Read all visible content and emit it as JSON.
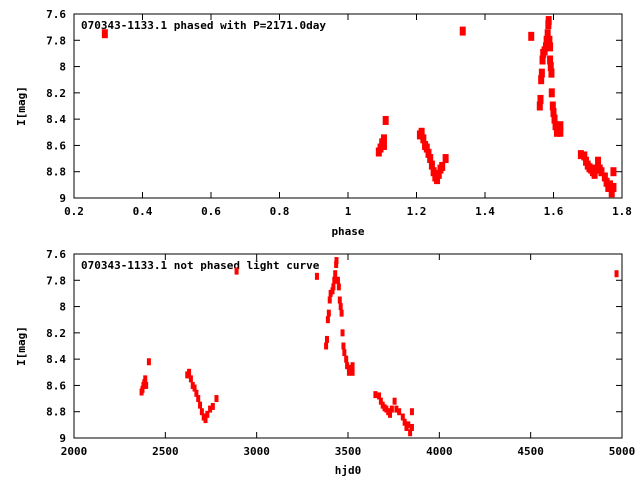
{
  "chart_data": [
    {
      "type": "scatter",
      "title": "070343-1133.1 phased with P=2171.0day",
      "xlabel": "phase",
      "ylabel": "I[mag]",
      "xlim": [
        0.2,
        1.8
      ],
      "ylim": [
        7.6,
        9
      ],
      "y_inverted": true,
      "xticks": [
        "0.2",
        "0.4",
        "0.6",
        "0.8",
        "1",
        "1.2",
        "1.4",
        "1.6",
        "1.8"
      ],
      "yticks": [
        "7.6",
        "7.8",
        "8",
        "8.2",
        "8.4",
        "8.6",
        "8.8",
        "9"
      ],
      "color": "#ff0000",
      "points": [
        [
          0.29,
          7.75
        ],
        [
          1.09,
          8.65
        ],
        [
          1.095,
          8.62
        ],
        [
          1.1,
          8.58
        ],
        [
          1.1,
          8.6
        ],
        [
          1.105,
          8.55
        ],
        [
          1.105,
          8.6
        ],
        [
          1.11,
          8.41
        ],
        [
          1.21,
          8.52
        ],
        [
          1.215,
          8.5
        ],
        [
          1.22,
          8.55
        ],
        [
          1.225,
          8.6
        ],
        [
          1.23,
          8.62
        ],
        [
          1.235,
          8.66
        ],
        [
          1.24,
          8.7
        ],
        [
          1.245,
          8.75
        ],
        [
          1.25,
          8.8
        ],
        [
          1.255,
          8.84
        ],
        [
          1.26,
          8.86
        ],
        [
          1.265,
          8.82
        ],
        [
          1.27,
          8.78
        ],
        [
          1.275,
          8.76
        ],
        [
          1.285,
          8.7
        ],
        [
          1.335,
          7.73
        ],
        [
          1.535,
          7.77
        ],
        [
          1.56,
          8.3
        ],
        [
          1.562,
          8.25
        ],
        [
          1.564,
          8.1
        ],
        [
          1.566,
          8.05
        ],
        [
          1.568,
          7.95
        ],
        [
          1.57,
          7.9
        ],
        [
          1.574,
          7.88
        ],
        [
          1.578,
          7.85
        ],
        [
          1.58,
          7.8
        ],
        [
          1.583,
          7.75
        ],
        [
          1.585,
          7.68
        ],
        [
          1.586,
          7.65
        ],
        [
          1.588,
          7.8
        ],
        [
          1.59,
          7.85
        ],
        [
          1.59,
          7.95
        ],
        [
          1.592,
          8.0
        ],
        [
          1.594,
          8.05
        ],
        [
          1.595,
          8.2
        ],
        [
          1.598,
          8.3
        ],
        [
          1.6,
          8.35
        ],
        [
          1.603,
          8.4
        ],
        [
          1.606,
          8.45
        ],
        [
          1.61,
          8.5
        ],
        [
          1.615,
          8.47
        ],
        [
          1.62,
          8.45
        ],
        [
          1.62,
          8.5
        ],
        [
          1.68,
          8.67
        ],
        [
          1.69,
          8.68
        ],
        [
          1.695,
          8.72
        ],
        [
          1.7,
          8.75
        ],
        [
          1.705,
          8.77
        ],
        [
          1.71,
          8.78
        ],
        [
          1.715,
          8.8
        ],
        [
          1.72,
          8.82
        ],
        [
          1.725,
          8.78
        ],
        [
          1.73,
          8.72
        ],
        [
          1.735,
          8.78
        ],
        [
          1.74,
          8.8
        ],
        [
          1.75,
          8.84
        ],
        [
          1.755,
          8.88
        ],
        [
          1.76,
          8.92
        ],
        [
          1.765,
          8.9
        ],
        [
          1.77,
          8.96
        ],
        [
          1.775,
          8.92
        ],
        [
          1.775,
          8.8
        ]
      ]
    },
    {
      "type": "scatter",
      "title": "070343-1133.1 not phased light curve",
      "xlabel": "hjd0",
      "ylabel": "I[mag]",
      "xlim": [
        2000,
        5000
      ],
      "ylim": [
        7.6,
        9
      ],
      "y_inverted": true,
      "xticks": [
        "2000",
        "2500",
        "3000",
        "3500",
        "4000",
        "4500",
        "5000"
      ],
      "yticks": [
        "7.6",
        "7.8",
        "8",
        "8.2",
        "8.4",
        "8.6",
        "8.8",
        "9"
      ],
      "color": "#ff0000",
      "points": [
        [
          2370,
          8.65
        ],
        [
          2375,
          8.63
        ],
        [
          2380,
          8.6
        ],
        [
          2385,
          8.58
        ],
        [
          2390,
          8.55
        ],
        [
          2395,
          8.6
        ],
        [
          2410,
          8.42
        ],
        [
          2620,
          8.52
        ],
        [
          2630,
          8.5
        ],
        [
          2640,
          8.55
        ],
        [
          2650,
          8.6
        ],
        [
          2660,
          8.62
        ],
        [
          2670,
          8.66
        ],
        [
          2680,
          8.7
        ],
        [
          2690,
          8.75
        ],
        [
          2700,
          8.8
        ],
        [
          2710,
          8.84
        ],
        [
          2720,
          8.86
        ],
        [
          2730,
          8.82
        ],
        [
          2745,
          8.78
        ],
        [
          2760,
          8.76
        ],
        [
          2780,
          8.7
        ],
        [
          2890,
          7.73
        ],
        [
          3330,
          7.77
        ],
        [
          3380,
          8.3
        ],
        [
          3385,
          8.25
        ],
        [
          3390,
          8.1
        ],
        [
          3395,
          8.05
        ],
        [
          3400,
          7.95
        ],
        [
          3405,
          7.9
        ],
        [
          3415,
          7.88
        ],
        [
          3420,
          7.85
        ],
        [
          3425,
          7.8
        ],
        [
          3430,
          7.75
        ],
        [
          3435,
          7.68
        ],
        [
          3437,
          7.65
        ],
        [
          3445,
          7.8
        ],
        [
          3450,
          7.85
        ],
        [
          3455,
          7.95
        ],
        [
          3460,
          8.0
        ],
        [
          3465,
          8.05
        ],
        [
          3470,
          8.2
        ],
        [
          3475,
          8.3
        ],
        [
          3480,
          8.35
        ],
        [
          3490,
          8.4
        ],
        [
          3495,
          8.45
        ],
        [
          3505,
          8.5
        ],
        [
          3515,
          8.47
        ],
        [
          3525,
          8.45
        ],
        [
          3525,
          8.5
        ],
        [
          3650,
          8.67
        ],
        [
          3670,
          8.68
        ],
        [
          3680,
          8.72
        ],
        [
          3690,
          8.75
        ],
        [
          3700,
          8.77
        ],
        [
          3710,
          8.78
        ],
        [
          3720,
          8.8
        ],
        [
          3730,
          8.82
        ],
        [
          3740,
          8.78
        ],
        [
          3755,
          8.72
        ],
        [
          3765,
          8.78
        ],
        [
          3780,
          8.8
        ],
        [
          3800,
          8.84
        ],
        [
          3810,
          8.88
        ],
        [
          3820,
          8.92
        ],
        [
          3830,
          8.9
        ],
        [
          3840,
          8.96
        ],
        [
          3850,
          8.92
        ],
        [
          3850,
          8.8
        ],
        [
          4970,
          7.75
        ]
      ]
    }
  ]
}
